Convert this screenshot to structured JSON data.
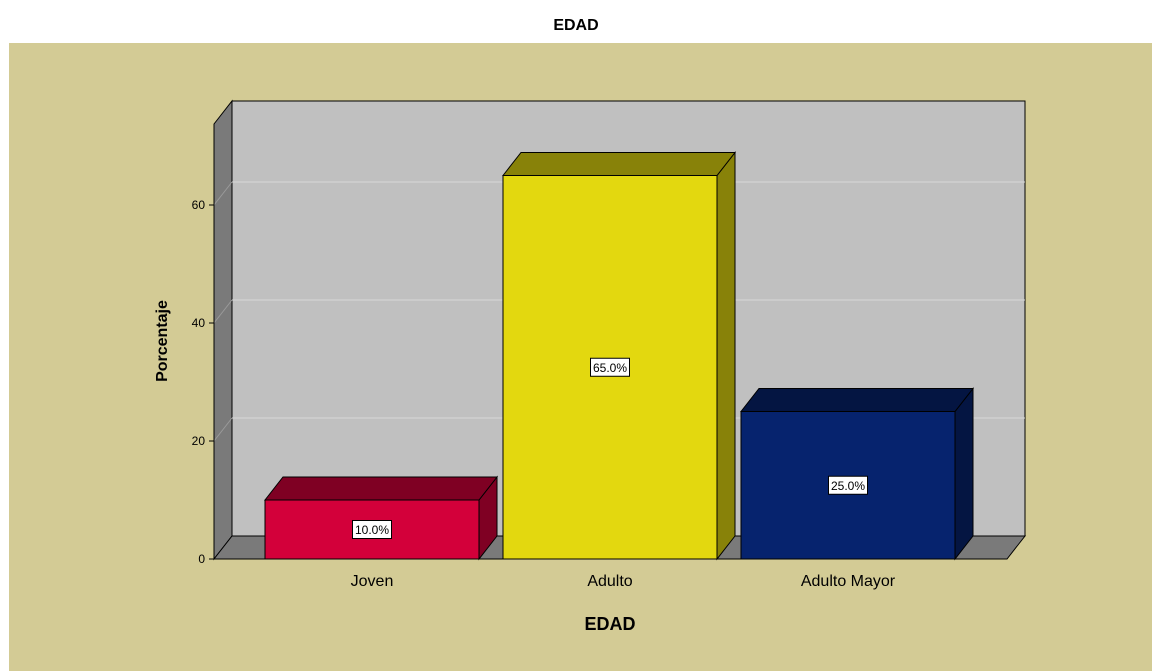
{
  "chart_data": {
    "type": "bar",
    "title": "EDAD",
    "xlabel": "EDAD",
    "ylabel": "Porcentaje",
    "categories": [
      "Joven",
      "Adulto",
      "Adulto Mayor"
    ],
    "values": [
      10.0,
      65.0,
      25.0
    ],
    "data_labels": [
      "10.0%",
      "65.0%",
      "25.0%"
    ],
    "y_ticks": [
      "0",
      "20",
      "40",
      "60"
    ],
    "ylim": [
      0,
      70
    ],
    "grid": true,
    "style": "3d",
    "colors": {
      "background": "#d3cb95",
      "plot_area": "#c0c0c0",
      "bars": [
        "#d3003a",
        "#e3d80f",
        "#06236e"
      ]
    }
  }
}
